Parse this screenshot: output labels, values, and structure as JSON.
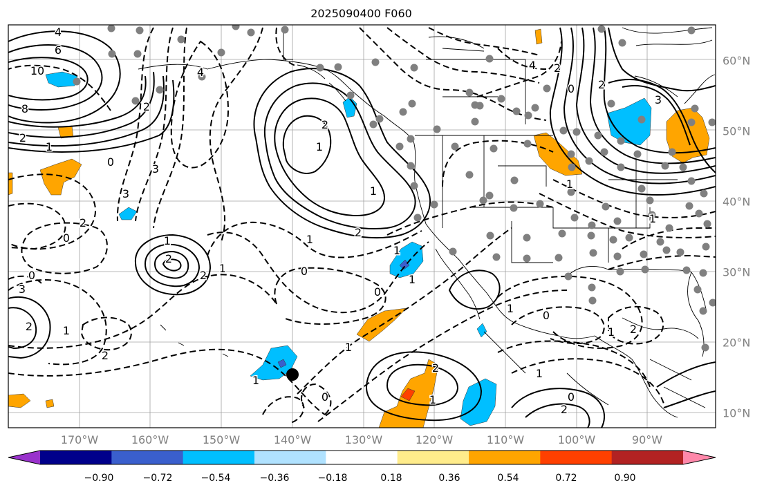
{
  "title": "2025090400 F060",
  "longitude_labels": [
    "170°W",
    "160°W",
    "150°W",
    "140°W",
    "130°W",
    "120°W",
    "110°W",
    "100°W",
    "90°W"
  ],
  "latitude_labels": [
    "60°N",
    "50°N",
    "40°N",
    "30°N",
    "20°N",
    "10°N"
  ],
  "colorbar": {
    "colors": [
      "#9932cc",
      "#00008b",
      "#3a5fcd",
      "#00bfff",
      "#b0e2ff",
      "#ffffff",
      "#ffec8b",
      "#ffa500",
      "#ff4000",
      "#b22222",
      "#ff88aa"
    ],
    "tick_labels": [
      "−0.90",
      "−0.72",
      "−0.54",
      "−0.36",
      "−0.18",
      "0.18",
      "0.36",
      "0.54",
      "0.72",
      "0.90"
    ]
  },
  "contour_labels": [
    "4",
    "6",
    "10",
    "8",
    "2",
    "1",
    "0",
    "3",
    "4",
    "2",
    "3",
    "2",
    "0",
    "1",
    "2",
    "2",
    "1",
    "0",
    "3",
    "2",
    "1",
    "2",
    "1",
    "0",
    "0",
    "1",
    "2",
    "1",
    "0",
    "1",
    "1",
    "2",
    "1",
    "0",
    "2",
    "1",
    "0",
    "1",
    "2",
    "1",
    "4",
    "2",
    "3",
    "0",
    "1",
    "2",
    "1",
    "2",
    "1",
    "1"
  ]
}
